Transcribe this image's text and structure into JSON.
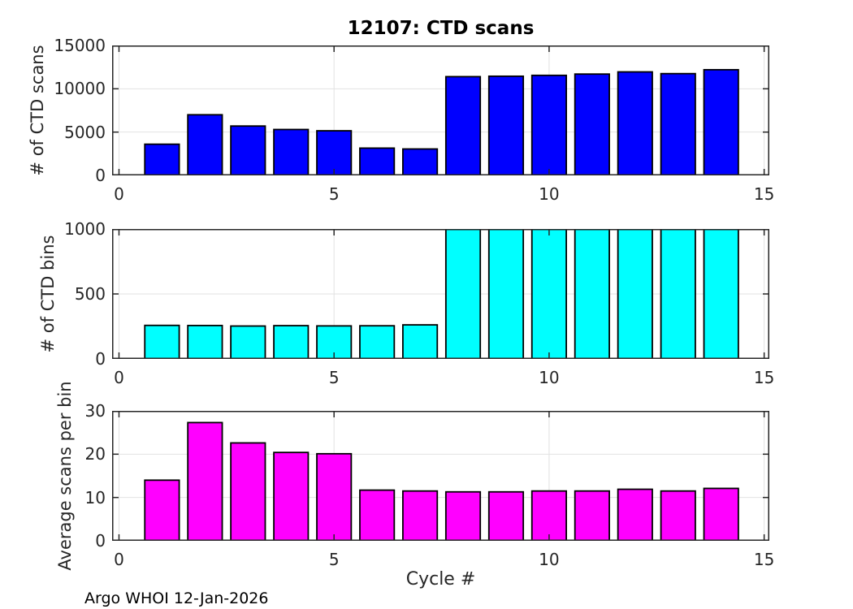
{
  "title": "12107: CTD scans",
  "footer": "Argo WHOI 12-Jan-2026",
  "xlabel": "Cycle #",
  "colors": {
    "scans_bar": "#0000ff",
    "bins_bar": "#00ffff",
    "avg_bar": "#ff00ff",
    "bar_edge": "#000000",
    "axis": "#262626",
    "grid": "#e2e2e2",
    "background": "#ffffff"
  },
  "chart_data": [
    {
      "type": "bar",
      "name": "ctd-scans",
      "title": "12107: CTD scans",
      "ylabel": "# of CTD scans",
      "xlabel": "",
      "categories": [
        1,
        2,
        3,
        4,
        5,
        6,
        7,
        8,
        9,
        10,
        11,
        12,
        13,
        14
      ],
      "values": [
        3600,
        7000,
        5700,
        5300,
        5150,
        3150,
        3050,
        11400,
        11450,
        11550,
        11700,
        11950,
        11750,
        12200
      ],
      "bar_color": "#0000ff",
      "bar_width": 0.8,
      "ylim": [
        0,
        15000
      ],
      "yticks": [
        0,
        5000,
        10000,
        15000
      ],
      "xlim": [
        -0.16,
        15.12
      ],
      "xticks": [
        0,
        5,
        10,
        15
      ],
      "grid": true,
      "legend": "none"
    },
    {
      "type": "bar",
      "name": "ctd-bins",
      "title": "",
      "ylabel": "# of CTD bins",
      "xlabel": "",
      "categories": [
        1,
        2,
        3,
        4,
        5,
        6,
        7,
        8,
        9,
        10,
        11,
        12,
        13,
        14
      ],
      "values": [
        258,
        257,
        253,
        256,
        254,
        255,
        262,
        1000,
        1000,
        1000,
        1000,
        1000,
        1000,
        1000
      ],
      "clipped_note": "bars for cycles 8-14 reach the 1000 axis limit (clipped)",
      "bar_color": "#00ffff",
      "bar_width": 0.8,
      "ylim": [
        0,
        1000
      ],
      "yticks": [
        0,
        500,
        1000
      ],
      "xlim": [
        -0.16,
        15.12
      ],
      "xticks": [
        0,
        5,
        10,
        15
      ],
      "grid": true,
      "legend": "none"
    },
    {
      "type": "bar",
      "name": "avg-scans-per-bin",
      "title": "",
      "ylabel": "Average scans per bin",
      "xlabel": "Cycle #",
      "categories": [
        1,
        2,
        3,
        4,
        5,
        6,
        7,
        8,
        9,
        10,
        11,
        12,
        13,
        14
      ],
      "values": [
        14.0,
        27.3,
        22.6,
        20.4,
        20.1,
        11.7,
        11.5,
        11.3,
        11.3,
        11.5,
        11.5,
        11.9,
        11.5,
        12.1
      ],
      "bar_color": "#ff00ff",
      "bar_width": 0.8,
      "ylim": [
        0,
        30
      ],
      "yticks": [
        0,
        10,
        20,
        30
      ],
      "xlim": [
        -0.16,
        15.12
      ],
      "xticks": [
        0,
        5,
        10,
        15
      ],
      "grid": true,
      "legend": "none"
    }
  ]
}
